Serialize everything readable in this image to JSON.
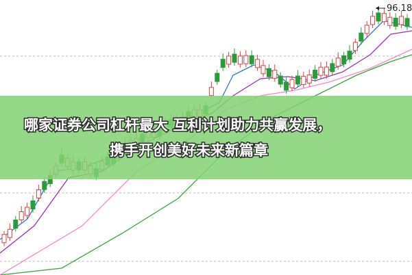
{
  "banner": {
    "lines": [
      "哪家证券公司杠杆最大 互利计划助力共赢发展，",
      "携手开创美好未来新篇章"
    ]
  },
  "price_label": "96.18"
}
